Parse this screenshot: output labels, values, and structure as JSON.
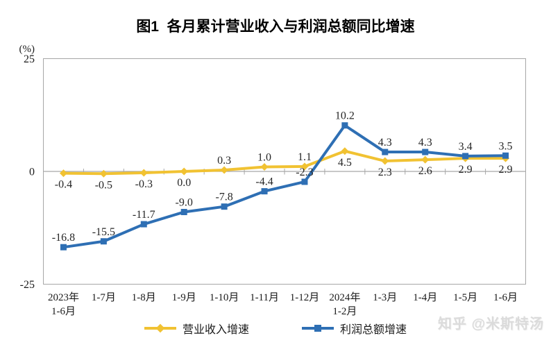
{
  "page": {
    "title": "图1  各月累计营业收入与利润总额同比增速",
    "watermark": "知乎 @米斯特汤"
  },
  "chart_data": {
    "type": "line",
    "title": "图1  各月累计营业收入与利润总额同比增速",
    "unit_label": "(%)",
    "xlabel": "",
    "ylabel": "(%)",
    "y_axis": {
      "min": -25,
      "max": 25,
      "ticks": [
        25,
        0,
        -25
      ],
      "grid": false
    },
    "axis_color": "#A6A6A6",
    "label_color": "#262626",
    "legend_position": "bottom",
    "categories": [
      "2023年\n1-6月",
      "1-7月",
      "1-8月",
      "1-9月",
      "1-10月",
      "1-11月",
      "1-12月",
      "2024年\n1-2月",
      "1-3月",
      "1-4月",
      "1-5月",
      "1-6月"
    ],
    "series": [
      {
        "name": "营业收入增速",
        "color": "#F1C232",
        "marker": "diamond",
        "values": [
          -0.4,
          -0.5,
          -0.3,
          0.0,
          0.3,
          1.0,
          1.1,
          4.5,
          2.3,
          2.6,
          2.9,
          2.9
        ],
        "label_position": [
          "below",
          "below",
          "below",
          "below",
          "above",
          "above",
          "above",
          "below",
          "below",
          "below",
          "below",
          "below"
        ]
      },
      {
        "name": "利润总额增速",
        "color": "#2E6FB4",
        "marker": "square",
        "values": [
          -16.8,
          -15.5,
          -11.7,
          -9.0,
          -7.8,
          -4.4,
          -2.3,
          10.2,
          4.3,
          4.3,
          3.4,
          3.5
        ],
        "label_position": [
          "above",
          "above",
          "above",
          "above",
          "above",
          "above",
          "above",
          "above",
          "above",
          "above",
          "above",
          "above"
        ]
      }
    ]
  }
}
